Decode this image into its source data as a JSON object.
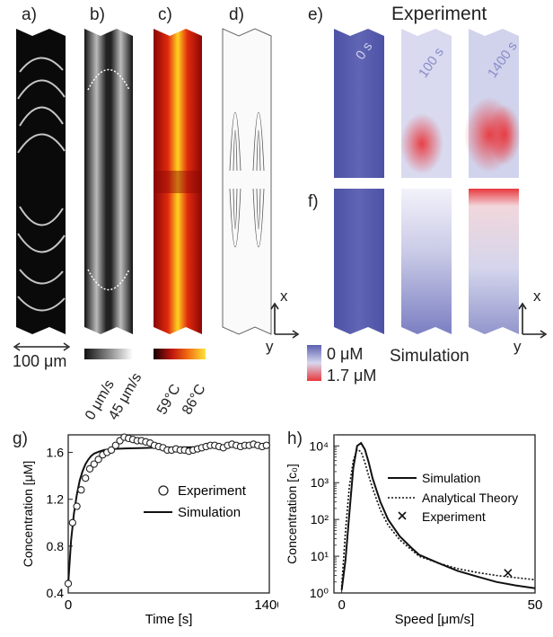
{
  "panels": {
    "a": "a)",
    "b": "b)",
    "c": "c)",
    "d": "d)",
    "e": "e)",
    "f": "f)",
    "g": "g)",
    "h": "h)"
  },
  "experiment_title": "Experiment",
  "simulation_title": "Simulation",
  "time_labels": [
    "0 s",
    "100 s",
    "1400 s"
  ],
  "scale_bar": "100 μm",
  "velocity_scale": {
    "min": "0 μm/s",
    "max": "45 μm/s"
  },
  "temperature_scale": {
    "min": "59°C",
    "max": "86°C"
  },
  "concentration_scale": {
    "min": "0 μM",
    "max": "1.7 μM"
  },
  "axes_labels": {
    "x": "x",
    "y": "y"
  },
  "colors": {
    "low": "#5a5fb0",
    "high": "#e8383d",
    "hot": "#ffd21f",
    "warm": "#c0150f"
  },
  "chart_data": [
    {
      "type": "line",
      "panel": "g",
      "xlabel": "Time [s]",
      "ylabel": "Concentration [μM]",
      "xlim": [
        0,
        1400
      ],
      "ylim": [
        0.4,
        1.75
      ],
      "xticks": [
        "0",
        "1400"
      ],
      "yticks": [
        "0.4",
        "0.8",
        "1.2",
        "1.6"
      ],
      "legend": [
        "Experiment",
        "Simulation"
      ],
      "series": [
        {
          "name": "Experiment",
          "style": "circles",
          "x": [
            0,
            30,
            60,
            90,
            120,
            150,
            180,
            210,
            240,
            270,
            300,
            330,
            360,
            390,
            420,
            450,
            480,
            510,
            540,
            570,
            600,
            630,
            660,
            690,
            720,
            750,
            780,
            810,
            840,
            870,
            900,
            930,
            960,
            990,
            1020,
            1050,
            1080,
            1110,
            1140,
            1170,
            1200,
            1230,
            1260,
            1290,
            1320,
            1350,
            1380
          ],
          "y": [
            0.48,
            1.0,
            1.14,
            1.28,
            1.38,
            1.46,
            1.5,
            1.54,
            1.58,
            1.6,
            1.62,
            1.66,
            1.7,
            1.73,
            1.72,
            1.71,
            1.7,
            1.7,
            1.69,
            1.68,
            1.66,
            1.65,
            1.64,
            1.62,
            1.62,
            1.63,
            1.62,
            1.62,
            1.61,
            1.62,
            1.63,
            1.64,
            1.65,
            1.66,
            1.66,
            1.65,
            1.64,
            1.66,
            1.67,
            1.66,
            1.65,
            1.66,
            1.66,
            1.67,
            1.66,
            1.65,
            1.66
          ]
        },
        {
          "name": "Simulation",
          "style": "solid",
          "x": [
            0,
            20,
            40,
            60,
            80,
            100,
            120,
            140,
            160,
            180,
            200,
            220,
            250,
            280,
            320,
            360,
            400,
            500,
            600,
            800,
            1000,
            1200,
            1400
          ],
          "y": [
            0.48,
            0.85,
            1.08,
            1.24,
            1.36,
            1.44,
            1.5,
            1.54,
            1.57,
            1.59,
            1.6,
            1.61,
            1.62,
            1.625,
            1.63,
            1.632,
            1.634,
            1.637,
            1.64,
            1.643,
            1.646,
            1.65,
            1.655
          ]
        }
      ]
    },
    {
      "type": "line",
      "panel": "h",
      "xlabel": "Speed [μm/s]",
      "ylabel": "Concentration [c₀]",
      "xscale": "linear",
      "yscale": "log",
      "xlim": [
        -2,
        50
      ],
      "ylim": [
        1,
        20000
      ],
      "xticks": [
        "0",
        "50"
      ],
      "yticks": [
        "10⁰",
        "10¹",
        "10²",
        "10³",
        "10⁴"
      ],
      "legend": [
        "Simulation",
        "Analytical Theory",
        "Experiment"
      ],
      "series": [
        {
          "name": "Simulation",
          "style": "solid",
          "x": [
            0,
            1,
            2,
            3,
            4,
            5,
            6,
            7,
            8,
            10,
            12,
            15,
            18,
            20,
            25,
            30,
            35,
            40,
            45,
            50
          ],
          "y": [
            1.2,
            8,
            150,
            2500,
            10000,
            12000,
            8000,
            3500,
            1300,
            300,
            100,
            35,
            17,
            11,
            6.5,
            4.0,
            2.8,
            2.0,
            1.6,
            1.35
          ]
        },
        {
          "name": "Analytical Theory",
          "style": "dotted",
          "x": [
            0,
            1,
            2,
            3,
            4,
            5,
            6,
            7,
            8,
            10,
            12,
            15,
            18,
            20,
            25,
            30,
            35,
            40,
            45,
            50
          ],
          "y": [
            1.5,
            50,
            800,
            4000,
            8000,
            7000,
            3500,
            1500,
            700,
            180,
            70,
            28,
            15,
            10,
            6.5,
            4.6,
            3.6,
            3.0,
            2.6,
            2.3
          ]
        },
        {
          "name": "Experiment",
          "style": "x",
          "x": [
            43
          ],
          "y": [
            3.5
          ]
        }
      ]
    }
  ]
}
